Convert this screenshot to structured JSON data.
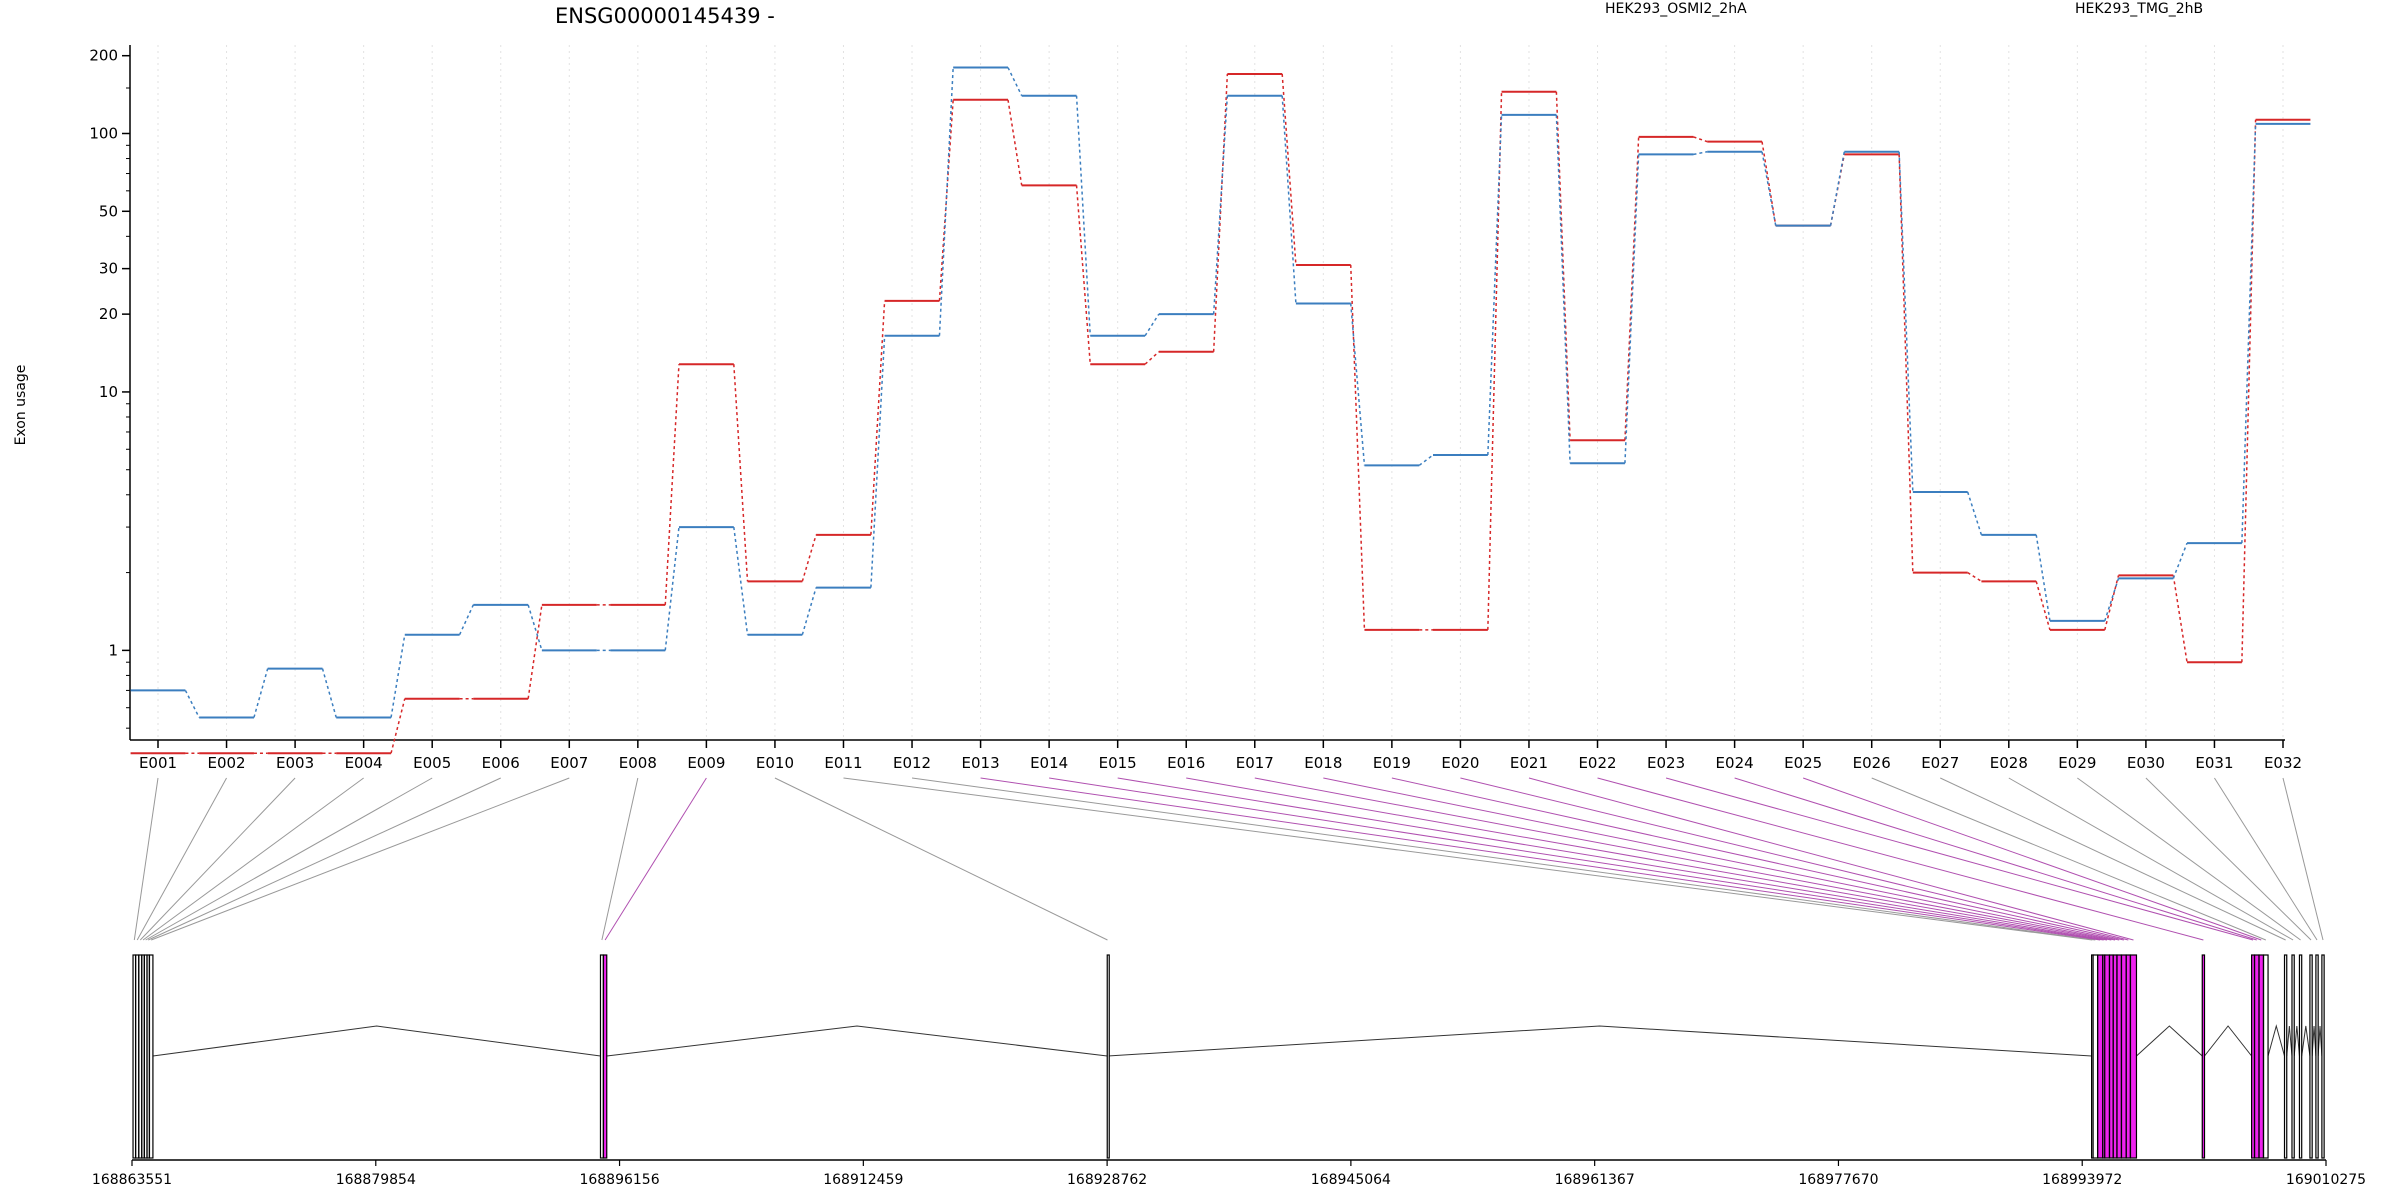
{
  "chart_data": {
    "type": "line",
    "title": "ENSG00000145439 -",
    "ylabel": "Exon usage",
    "yscale": "log",
    "ylim": [
      0.45,
      220
    ],
    "yticks": [
      1,
      10,
      20,
      30,
      50,
      100,
      200
    ],
    "ytick_labels": [
      "1",
      "10",
      "20",
      "30",
      "50",
      "100",
      "200"
    ],
    "legend_position": "top",
    "grid": "vertical-dotted",
    "categories": [
      "E001",
      "E002",
      "E003",
      "E004",
      "E005",
      "E006",
      "E007",
      "E008",
      "E009",
      "E010",
      "E011",
      "E012",
      "E013",
      "E014",
      "E015",
      "E016",
      "E017",
      "E018",
      "E019",
      "E020",
      "E021",
      "E022",
      "E023",
      "E024",
      "E025",
      "E026",
      "E027",
      "E028",
      "E029",
      "E030",
      "E031",
      "E032"
    ],
    "series": [
      {
        "name": "HEK293_OSMI2_2hA",
        "color": "#d62728",
        "values": [
          0.4,
          0.4,
          0.4,
          0.4,
          0.65,
          0.65,
          1.5,
          1.5,
          12.8,
          1.85,
          2.8,
          22.5,
          135,
          63,
          12.8,
          14.3,
          170,
          31,
          1.2,
          1.2,
          145,
          6.5,
          97,
          93,
          44,
          83,
          2.0,
          1.85,
          1.2,
          1.95,
          0.9,
          113
        ]
      },
      {
        "name": "HEK293_TMG_2hB",
        "color": "#3b7ebf",
        "values": [
          0.7,
          0.55,
          0.85,
          0.55,
          1.15,
          1.5,
          1.0,
          1.0,
          3.0,
          1.15,
          1.75,
          16.5,
          180,
          140,
          16.5,
          20,
          140,
          22,
          5.2,
          5.7,
          118,
          5.3,
          83,
          85,
          44,
          85,
          4.1,
          2.8,
          1.3,
          1.9,
          2.6,
          109
        ]
      }
    ],
    "gene_model": {
      "coordinate_labels": [
        "168863551",
        "168879854",
        "168896156",
        "168912459",
        "168928762",
        "168945064",
        "168961367",
        "168977670",
        "168993972",
        "169010275"
      ],
      "highlight_color": "#ee22ee",
      "highlight_exons": [
        "E009",
        "E013",
        "E014",
        "E015",
        "E016",
        "E017",
        "E018",
        "E019",
        "E020",
        "E021",
        "E022",
        "E023",
        "E024",
        "E025"
      ]
    }
  }
}
